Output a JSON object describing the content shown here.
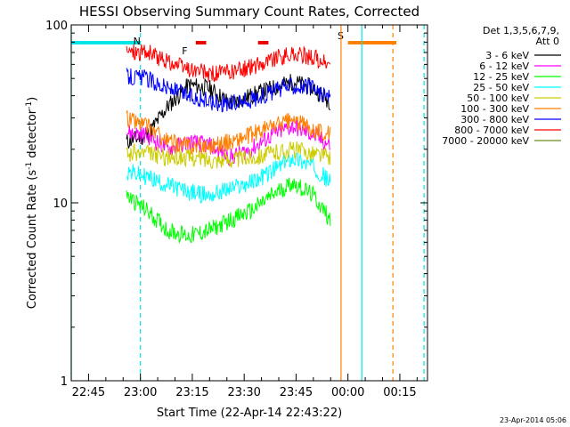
{
  "chart_data": {
    "type": "line",
    "title": "HESSI Observing Summary Count Rates, Corrected",
    "xlabel": "Start Time (22-Apr-14 22:43:22)",
    "ylabel": "Corrected Count Rate (s⁻¹ detector⁻¹)",
    "ylabel_main": "Corrected Count Rate (s",
    "ylabel_mid": " detector",
    "ylabel_end": ")",
    "ylabel_exp": "-1",
    "xlim": [
      "22:40",
      "00:23"
    ],
    "ylim": [
      1,
      100
    ],
    "yscale": "log",
    "xticks": [
      "22:45",
      "23:00",
      "23:15",
      "23:30",
      "23:45",
      "00:00",
      "00:15"
    ],
    "yticks": [
      "1",
      "10",
      "100"
    ],
    "legend_header": [
      "Det 1,3,5,6,7,9,",
      "Att 0"
    ],
    "legend_position": "right",
    "timestamp": "23-Apr-2014 05:06",
    "flags": [
      {
        "label": "N",
        "color": "#00e5e5",
        "start": "22:40",
        "end": "23:00"
      },
      {
        "label": "F",
        "color": "#ee0000",
        "start": "23:16",
        "end": "23:19",
        "label_at": "23:12"
      },
      {
        "label": "",
        "color": "#ee0000",
        "start": "23:34",
        "end": "23:37"
      },
      {
        "label": "S",
        "color": "#ff7f00",
        "start": "00:00",
        "end": "00:14",
        "label_at": "23:57"
      }
    ],
    "vertical_lines": [
      {
        "time": "22:40",
        "color": "#00e5e5",
        "style": "solid"
      },
      {
        "time": "23:00",
        "color": "#00e5e5",
        "style": "dashed"
      },
      {
        "time": "23:58",
        "color": "#ff7f00",
        "style": "solid"
      },
      {
        "time": "00:04",
        "color": "#00e5e5",
        "style": "solid"
      },
      {
        "time": "00:13",
        "color": "#ff7f00",
        "style": "dashed"
      },
      {
        "time": "00:22",
        "color": "#00e5e5",
        "style": "dashed"
      }
    ],
    "series": [
      {
        "name": "3 - 6 keV",
        "color": "#000000",
        "t": [
          "22:56",
          "23:02",
          "23:08",
          "23:14",
          "23:20",
          "23:26",
          "23:32",
          "23:38",
          "23:44",
          "23:50",
          "23:55"
        ],
        "values": [
          22,
          24,
          35,
          46,
          44,
          36,
          40,
          44,
          48,
          44,
          37
        ]
      },
      {
        "name": "6 - 12 keV",
        "color": "#ff00ff",
        "t": [
          "22:56",
          "23:02",
          "23:08",
          "23:14",
          "23:20",
          "23:26",
          "23:32",
          "23:38",
          "23:44",
          "23:50",
          "23:55"
        ],
        "values": [
          25,
          24,
          20,
          22,
          21,
          18,
          20,
          24,
          27,
          24,
          21
        ]
      },
      {
        "name": "12 - 25 keV",
        "color": "#00ff00",
        "t": [
          "22:56",
          "23:02",
          "23:08",
          "23:14",
          "23:20",
          "23:26",
          "23:32",
          "23:38",
          "23:44",
          "23:50",
          "23:55"
        ],
        "values": [
          11,
          9,
          7,
          6.5,
          7,
          8,
          9,
          11,
          13,
          11,
          8
        ]
      },
      {
        "name": "25 - 50 keV",
        "color": "#00ffff",
        "t": [
          "22:56",
          "23:02",
          "23:08",
          "23:14",
          "23:20",
          "23:26",
          "23:32",
          "23:38",
          "23:44",
          "23:50",
          "23:55"
        ],
        "values": [
          15,
          14,
          12.5,
          11.5,
          11,
          12,
          13,
          15,
          18,
          16,
          13
        ]
      },
      {
        "name": "50 - 100 keV",
        "color": "#cccc00",
        "t": [
          "22:56",
          "23:02",
          "23:08",
          "23:14",
          "23:20",
          "23:26",
          "23:32",
          "23:38",
          "23:44",
          "23:50",
          "23:55"
        ],
        "values": [
          19,
          19,
          18,
          18,
          17.5,
          17.5,
          18,
          19,
          20,
          19,
          18
        ]
      },
      {
        "name": "100 - 300 keV",
        "color": "#ff7f00",
        "t": [
          "22:56",
          "23:02",
          "23:08",
          "23:14",
          "23:20",
          "23:26",
          "23:32",
          "23:38",
          "23:44",
          "23:50",
          "23:55"
        ],
        "values": [
          30,
          27,
          22,
          21,
          21,
          22,
          24,
          27,
          29,
          26,
          24
        ]
      },
      {
        "name": "300 - 800 keV",
        "color": "#0000ff",
        "t": [
          "22:56",
          "23:02",
          "23:08",
          "23:14",
          "23:20",
          "23:26",
          "23:32",
          "23:38",
          "23:44",
          "23:50",
          "23:55"
        ],
        "values": [
          52,
          50,
          44,
          40,
          37,
          36,
          38,
          42,
          46,
          44,
          38
        ]
      },
      {
        "name": "800 - 7000 keV",
        "color": "#ff0000",
        "t": [
          "22:56",
          "23:02",
          "23:08",
          "23:14",
          "23:20",
          "23:26",
          "23:32",
          "23:38",
          "23:44",
          "23:50",
          "23:55"
        ],
        "values": [
          72,
          70,
          62,
          56,
          53,
          54,
          58,
          64,
          68,
          66,
          58
        ]
      },
      {
        "name": "7000 - 20000 keV",
        "color": "#6b8e23",
        "t": [],
        "values": []
      }
    ]
  }
}
